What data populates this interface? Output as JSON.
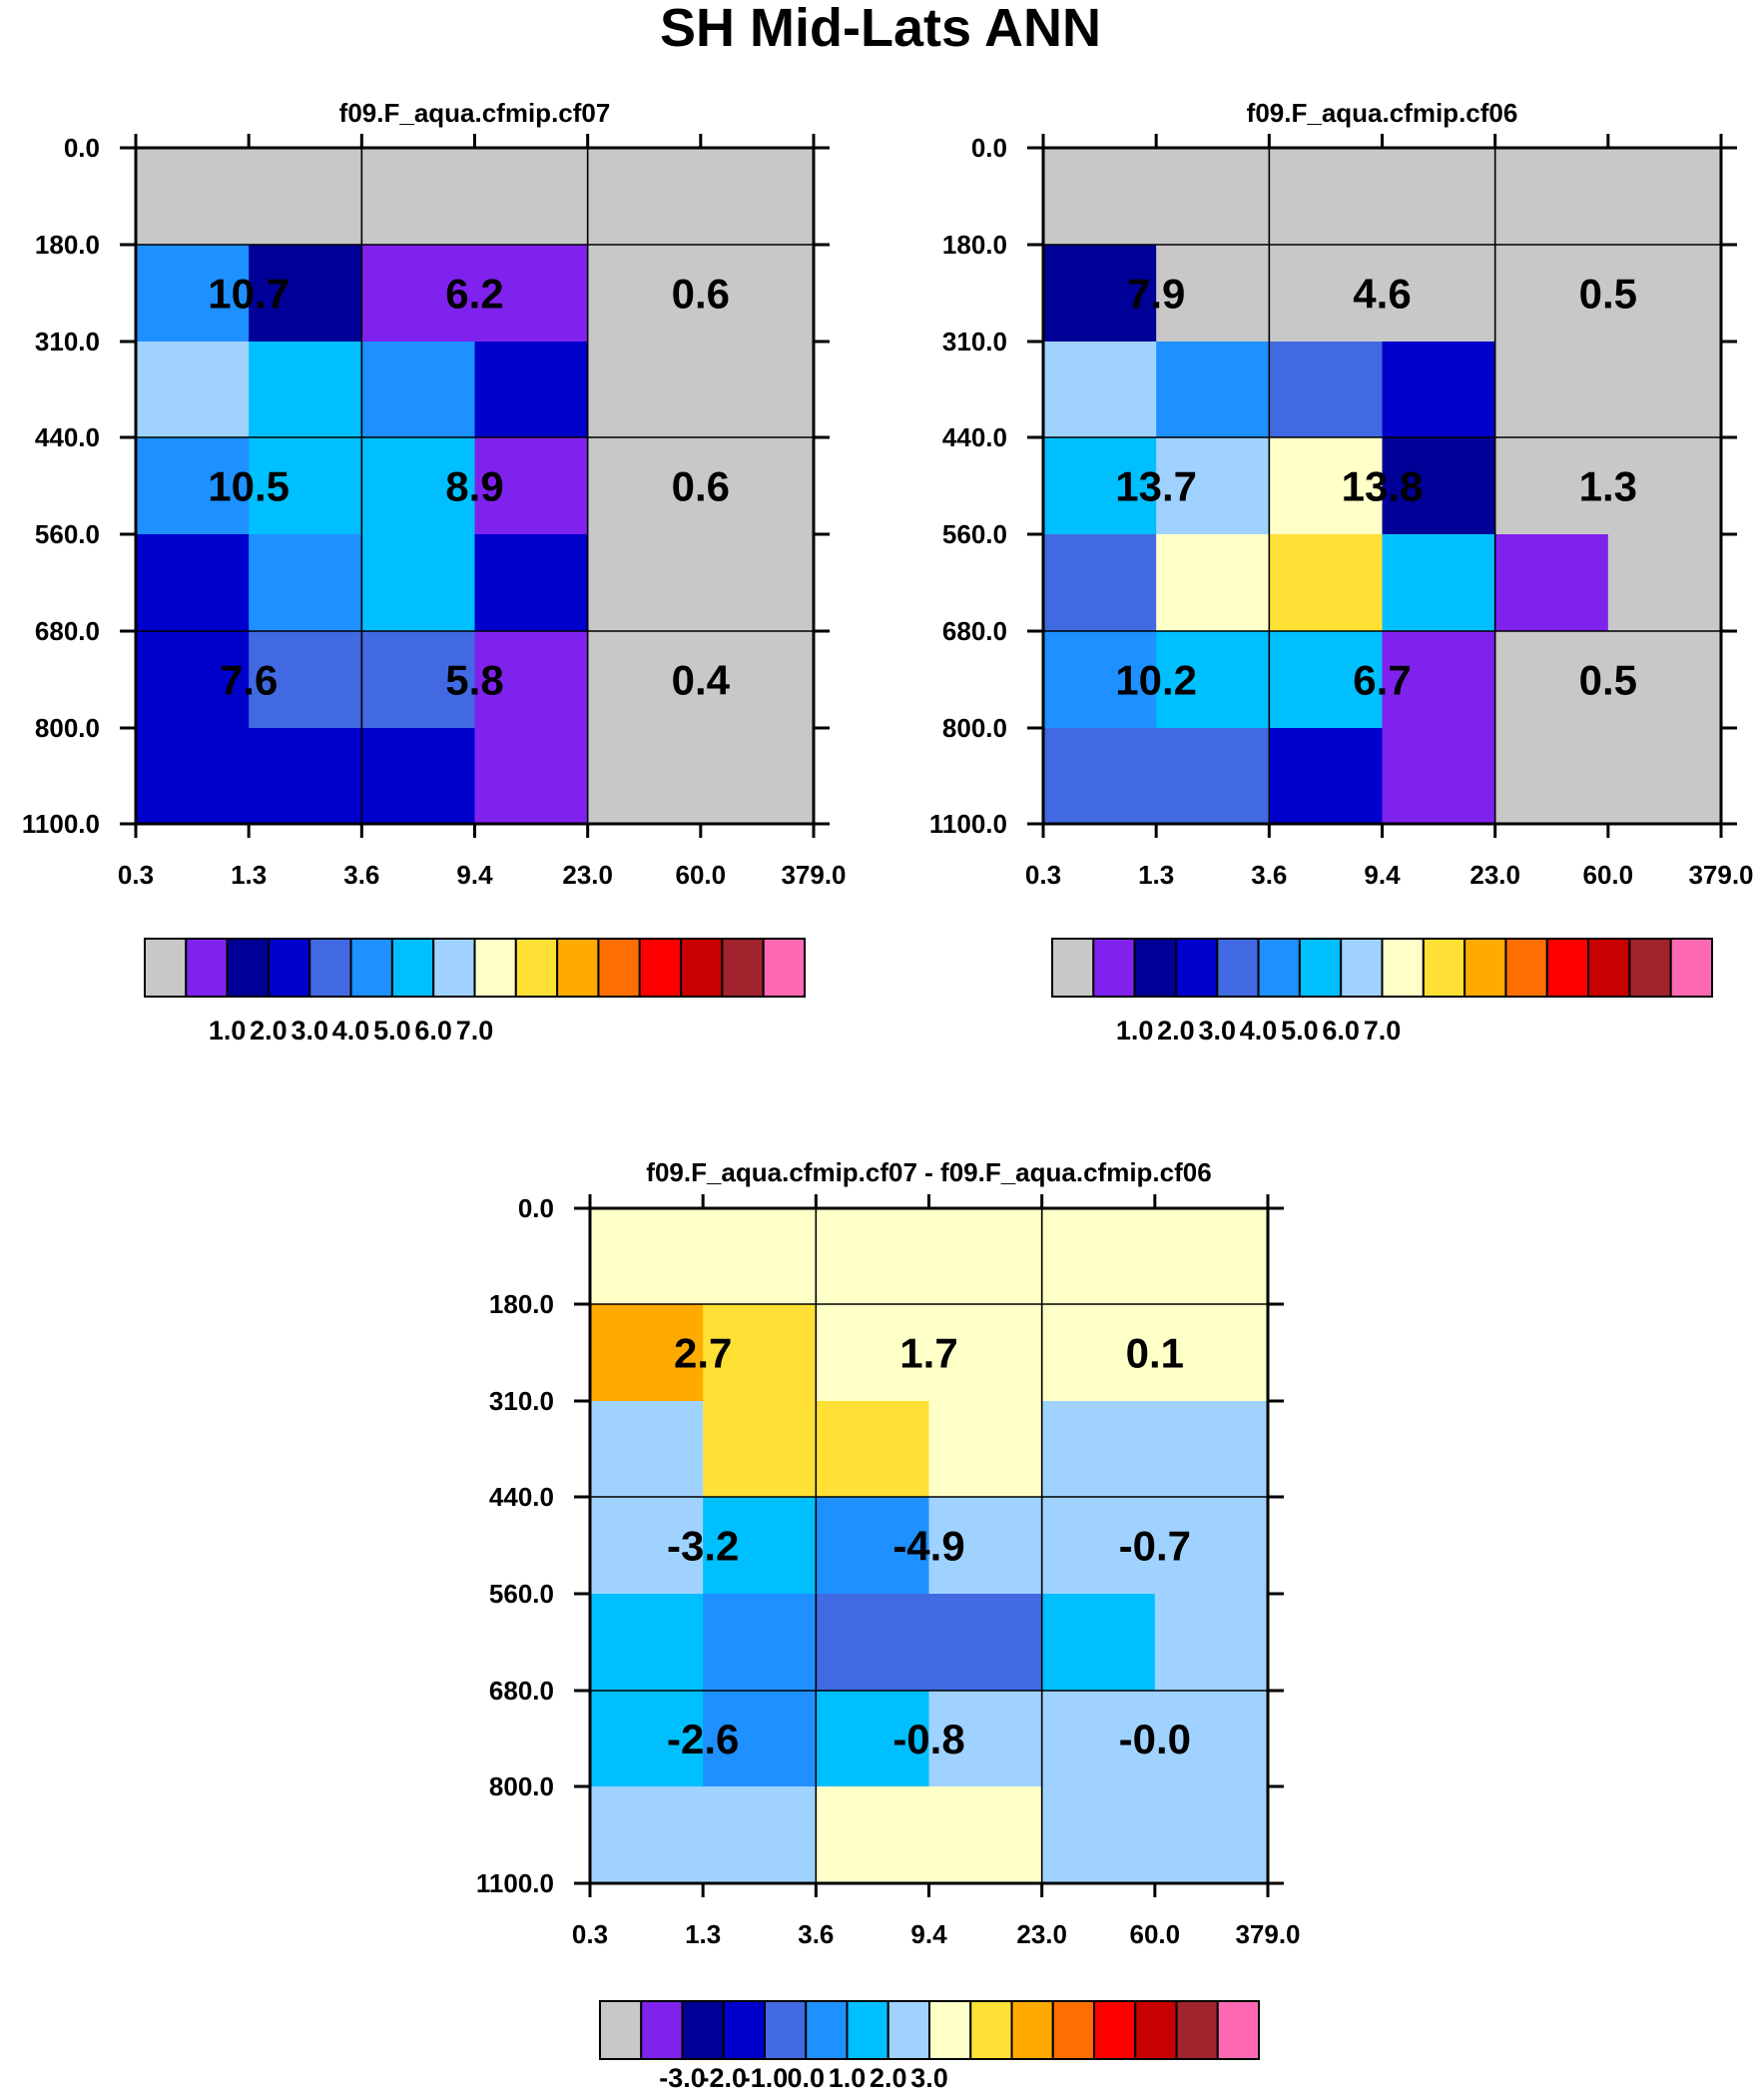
{
  "title": "SH Mid-Lats ANN",
  "colors": {
    "grey": "#c0c0c0",
    "palette": [
      "#c8c8c8",
      "#8022ee",
      "#000096",
      "#0000cc",
      "#4169e1",
      "#1e90ff",
      "#00bfff",
      "#a0d2ff",
      "#ffffc8",
      "#ffe135",
      "#ffaa00",
      "#ff6e00",
      "#ff0000",
      "#c80000",
      "#a0232d",
      "#ff69b4"
    ],
    "grid_line": "#000000"
  },
  "chart_data": [
    {
      "type": "heatmap",
      "title": "f09.F_aqua.cfmip.cf07",
      "x_ticks": [
        "0.3",
        "1.3",
        "3.6",
        "9.4",
        "23.0",
        "60.0",
        "379.0"
      ],
      "y_ticks": [
        "0.0",
        "180.0",
        "310.0",
        "440.0",
        "560.0",
        "680.0",
        "800.0",
        "1100.0"
      ],
      "cells": [
        [
          0,
          0,
          0,
          0,
          0,
          0
        ],
        [
          5,
          2,
          1,
          1,
          0,
          0
        ],
        [
          7,
          6,
          5,
          3,
          0,
          0
        ],
        [
          5,
          6,
          6,
          1,
          0,
          0
        ],
        [
          3,
          5,
          6,
          3,
          0,
          0
        ],
        [
          3,
          4,
          4,
          1,
          0,
          0
        ],
        [
          3,
          3,
          3,
          1,
          0,
          0
        ]
      ],
      "labels": [
        {
          "row": 1,
          "col": 1,
          "text": "10.7"
        },
        {
          "row": 1,
          "col": 3,
          "text": "6.2"
        },
        {
          "row": 1,
          "col": 5,
          "text": "0.6"
        },
        {
          "row": 3,
          "col": 1,
          "text": "10.5"
        },
        {
          "row": 3,
          "col": 3,
          "text": "8.9"
        },
        {
          "row": 3,
          "col": 5,
          "text": "0.6"
        },
        {
          "row": 5,
          "col": 1,
          "text": "7.6"
        },
        {
          "row": 5,
          "col": 3,
          "text": "5.8"
        },
        {
          "row": 5,
          "col": 5,
          "text": "0.4"
        }
      ],
      "colorbar_labels": [
        "1.0",
        "2.0",
        "3.0",
        "4.0",
        "5.0",
        "6.0",
        "7.0"
      ]
    },
    {
      "type": "heatmap",
      "title": "f09.F_aqua.cfmip.cf06",
      "x_ticks": [
        "0.3",
        "1.3",
        "3.6",
        "9.4",
        "23.0",
        "60.0",
        "379.0"
      ],
      "y_ticks": [
        "0.0",
        "180.0",
        "310.0",
        "440.0",
        "560.0",
        "680.0",
        "800.0",
        "1100.0"
      ],
      "cells": [
        [
          0,
          0,
          0,
          0,
          0,
          0
        ],
        [
          2,
          0,
          0,
          0,
          0,
          0
        ],
        [
          7,
          5,
          4,
          3,
          0,
          0
        ],
        [
          6,
          7,
          8,
          2,
          0,
          0
        ],
        [
          4,
          8,
          9,
          6,
          1,
          0
        ],
        [
          5,
          6,
          6,
          1,
          0,
          0
        ],
        [
          4,
          4,
          3,
          1,
          0,
          0
        ]
      ],
      "labels": [
        {
          "row": 1,
          "col": 1,
          "text": "7.9"
        },
        {
          "row": 1,
          "col": 3,
          "text": "4.6"
        },
        {
          "row": 1,
          "col": 5,
          "text": "0.5"
        },
        {
          "row": 3,
          "col": 1,
          "text": "13.7"
        },
        {
          "row": 3,
          "col": 3,
          "text": "13.8"
        },
        {
          "row": 3,
          "col": 5,
          "text": "1.3"
        },
        {
          "row": 5,
          "col": 1,
          "text": "10.2"
        },
        {
          "row": 5,
          "col": 3,
          "text": "6.7"
        },
        {
          "row": 5,
          "col": 5,
          "text": "0.5"
        }
      ],
      "colorbar_labels": [
        "1.0",
        "2.0",
        "3.0",
        "4.0",
        "5.0",
        "6.0",
        "7.0"
      ]
    },
    {
      "type": "heatmap",
      "title": "f09.F_aqua.cfmip.cf07 - f09.F_aqua.cfmip.cf06",
      "x_ticks": [
        "0.3",
        "1.3",
        "3.6",
        "9.4",
        "23.0",
        "60.0",
        "379.0"
      ],
      "y_ticks": [
        "0.0",
        "180.0",
        "310.0",
        "440.0",
        "560.0",
        "680.0",
        "800.0",
        "1100.0"
      ],
      "cells": [
        [
          8,
          8,
          8,
          8,
          8,
          8
        ],
        [
          10,
          9,
          8,
          8,
          8,
          8
        ],
        [
          7,
          9,
          9,
          8,
          7,
          7
        ],
        [
          7,
          6,
          5,
          7,
          7,
          7
        ],
        [
          6,
          5,
          4,
          4,
          6,
          7
        ],
        [
          6,
          5,
          6,
          7,
          7,
          7
        ],
        [
          7,
          7,
          8,
          8,
          7,
          7
        ]
      ],
      "labels": [
        {
          "row": 1,
          "col": 1,
          "text": "2.7"
        },
        {
          "row": 1,
          "col": 3,
          "text": "1.7"
        },
        {
          "row": 1,
          "col": 5,
          "text": "0.1"
        },
        {
          "row": 3,
          "col": 1,
          "text": "-3.2"
        },
        {
          "row": 3,
          "col": 3,
          "text": "-4.9"
        },
        {
          "row": 3,
          "col": 5,
          "text": "-0.7"
        },
        {
          "row": 5,
          "col": 1,
          "text": "-2.6"
        },
        {
          "row": 5,
          "col": 3,
          "text": "-0.8"
        },
        {
          "row": 5,
          "col": 5,
          "text": "-0.0"
        }
      ],
      "colorbar_labels": [
        "-3.0",
        "-2.0",
        "-1.0",
        "0.0",
        "1.0",
        "2.0",
        "3.0"
      ]
    }
  ]
}
